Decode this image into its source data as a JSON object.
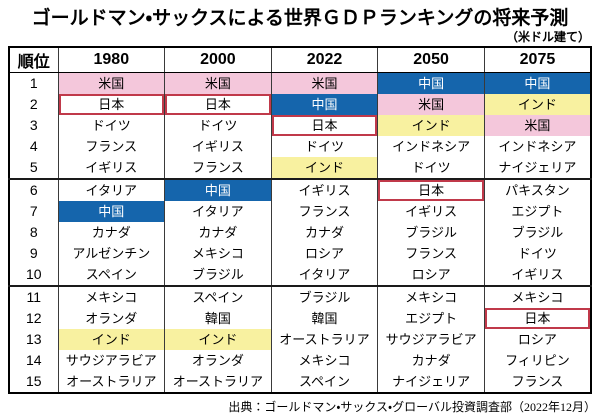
{
  "title": "ゴールドマン・サックスによる世界ＧＤＰランキングの将来予測",
  "subtitle": "（米ドル建て）",
  "source": "出典：ゴールドマン・サックス・グローバル投資調査部（2022年12月）",
  "colors": {
    "pink": "#f4c7db",
    "blue": "#1565ac",
    "yellow": "#f8f1a0",
    "red_border": "#c0394a",
    "grid_line": "#3a3a3a",
    "frame": "#000000"
  },
  "chart_data": {
    "type": "table",
    "title": "ゴールドマン・サックスによる世界ＧＤＰランキングの将来予測",
    "subtitle": "（米ドル建て）",
    "source": "出典：ゴールドマン・サックス・グローバル投資調査部（2022年12月）",
    "columns": [
      "順位",
      "1980",
      "2000",
      "2022",
      "2050",
      "2075"
    ],
    "rows": [
      {
        "rank": "1",
        "values": [
          "米国",
          "米国",
          "米国",
          "中国",
          "中国"
        ],
        "styles": [
          "pink",
          "pink",
          "pink",
          "blue",
          "blue"
        ]
      },
      {
        "rank": "2",
        "values": [
          "日本",
          "日本",
          "中国",
          "米国",
          "インド"
        ],
        "styles": [
          "redbox",
          "redbox",
          "blue",
          "pink",
          "yellow"
        ]
      },
      {
        "rank": "3",
        "values": [
          "ドイツ",
          "ドイツ",
          "日本",
          "インド",
          "米国"
        ],
        "styles": [
          "",
          "",
          "redbox",
          "yellow",
          "pink"
        ]
      },
      {
        "rank": "4",
        "values": [
          "フランス",
          "イギリス",
          "ドイツ",
          "インドネシア",
          "インドネシア"
        ],
        "styles": [
          "",
          "",
          "",
          "",
          ""
        ]
      },
      {
        "rank": "5",
        "values": [
          "イギリス",
          "フランス",
          "インド",
          "ドイツ",
          "ナイジェリア"
        ],
        "styles": [
          "",
          "",
          "yellow",
          "",
          ""
        ]
      },
      {
        "rank": "6",
        "values": [
          "イタリア",
          "中国",
          "イギリス",
          "日本",
          "パキスタン"
        ],
        "styles": [
          "",
          "blue",
          "",
          "redbox",
          ""
        ]
      },
      {
        "rank": "7",
        "values": [
          "中国",
          "イタリア",
          "フランス",
          "イギリス",
          "エジプト"
        ],
        "styles": [
          "blue",
          "",
          "",
          "",
          ""
        ]
      },
      {
        "rank": "8",
        "values": [
          "カナダ",
          "カナダ",
          "カナダ",
          "ブラジル",
          "ブラジル"
        ],
        "styles": [
          "",
          "",
          "",
          "",
          ""
        ]
      },
      {
        "rank": "9",
        "values": [
          "アルゼンチン",
          "メキシコ",
          "ロシア",
          "フランス",
          "ドイツ"
        ],
        "styles": [
          "",
          "",
          "",
          "",
          ""
        ]
      },
      {
        "rank": "10",
        "values": [
          "スペイン",
          "ブラジル",
          "イタリア",
          "ロシア",
          "イギリス"
        ],
        "styles": [
          "",
          "",
          "",
          "",
          ""
        ]
      },
      {
        "rank": "11",
        "values": [
          "メキシコ",
          "スペイン",
          "ブラジル",
          "メキシコ",
          "メキシコ"
        ],
        "styles": [
          "",
          "",
          "",
          "",
          ""
        ]
      },
      {
        "rank": "12",
        "values": [
          "オランダ",
          "韓国",
          "韓国",
          "エジプト",
          "日本"
        ],
        "styles": [
          "",
          "",
          "",
          "",
          "redbox"
        ]
      },
      {
        "rank": "13",
        "values": [
          "インド",
          "インド",
          "オーストラリア",
          "サウジアラビア",
          "ロシア"
        ],
        "styles": [
          "yellow",
          "yellow",
          "",
          "",
          ""
        ]
      },
      {
        "rank": "14",
        "values": [
          "サウジアラビア",
          "オランダ",
          "メキシコ",
          "カナダ",
          "フィリピン"
        ],
        "styles": [
          "",
          "",
          "",
          "",
          ""
        ]
      },
      {
        "rank": "15",
        "values": [
          "オーストラリア",
          "オーストラリア",
          "スペイン",
          "ナイジェリア",
          "フランス"
        ],
        "styles": [
          "",
          "",
          "",
          "",
          ""
        ]
      }
    ],
    "highlight_groups_after_rows": [
      5,
      10
    ]
  }
}
